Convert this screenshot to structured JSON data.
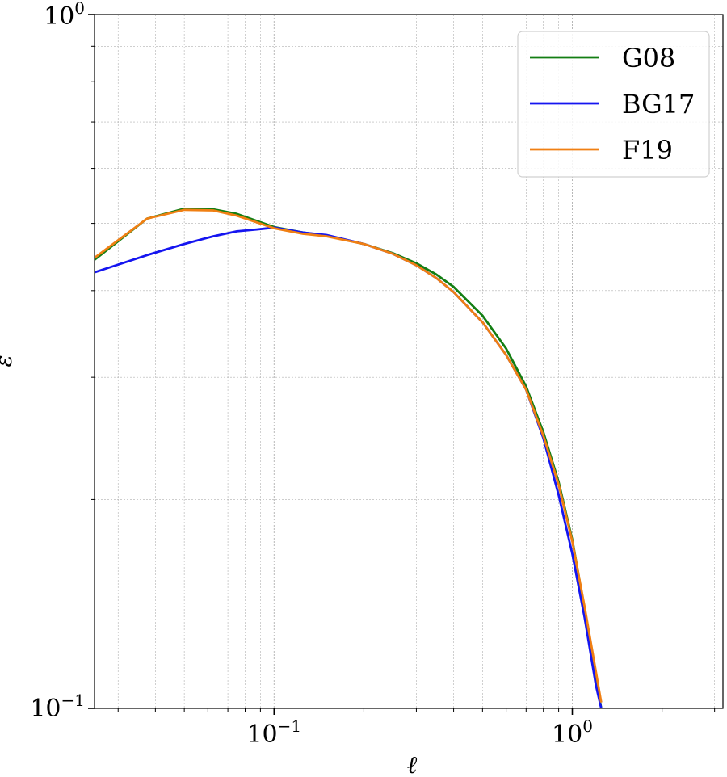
{
  "chart_data": {
    "type": "line",
    "xscale": "log",
    "yscale": "log",
    "xlabel": "ℓ",
    "ylabel": "ε",
    "xlim": [
      0.025,
      3.2
    ],
    "ylim": [
      0.1,
      1.0
    ],
    "grid": true,
    "legend_position": "top-right",
    "x_ticks": [
      {
        "value": 0.1,
        "base": "10",
        "exp": "−1"
      },
      {
        "value": 1.0,
        "base": "10",
        "exp": "0"
      }
    ],
    "y_ticks": [
      {
        "value": 0.1,
        "base": "10",
        "exp": "−1"
      },
      {
        "value": 1.0,
        "base": "10",
        "exp": "0"
      }
    ],
    "series": [
      {
        "name": "G08",
        "color": "#137e13",
        "x": [
          0.025,
          0.0375,
          0.05,
          0.0625,
          0.075,
          0.1,
          0.125,
          0.15,
          0.2,
          0.25,
          0.3,
          0.35,
          0.4,
          0.5,
          0.6,
          0.7,
          0.8,
          0.9,
          1.0,
          1.1,
          1.2,
          1.25
        ],
        "y": [
          0.443,
          0.508,
          0.525,
          0.524,
          0.516,
          0.494,
          0.485,
          0.48,
          0.467,
          0.453,
          0.438,
          0.422,
          0.405,
          0.368,
          0.33,
          0.291,
          0.25,
          0.212,
          0.175,
          0.139,
          0.111,
          0.1
        ]
      },
      {
        "name": "BG17",
        "color": "#1515f0",
        "x": [
          0.025,
          0.0375,
          0.05,
          0.0625,
          0.075,
          0.0875,
          0.1,
          0.125,
          0.15,
          0.2,
          0.25,
          0.3,
          0.35,
          0.4,
          0.5,
          0.6,
          0.7,
          0.8,
          0.9,
          1.0,
          1.1,
          1.2,
          1.25
        ],
        "y": [
          0.425,
          0.45,
          0.467,
          0.479,
          0.487,
          0.49,
          0.493,
          0.485,
          0.481,
          0.467,
          0.452,
          0.435,
          0.417,
          0.398,
          0.36,
          0.323,
          0.288,
          0.245,
          0.203,
          0.167,
          0.135,
          0.108,
          0.1
        ]
      },
      {
        "name": "F19",
        "color": "#f07f13",
        "x": [
          0.025,
          0.0375,
          0.05,
          0.0625,
          0.075,
          0.1,
          0.125,
          0.15,
          0.2,
          0.25,
          0.3,
          0.35,
          0.4,
          0.5,
          0.6,
          0.7,
          0.8,
          0.9,
          1.0,
          1.1,
          1.2,
          1.25
        ],
        "y": [
          0.446,
          0.508,
          0.523,
          0.522,
          0.513,
          0.492,
          0.483,
          0.479,
          0.467,
          0.452,
          0.435,
          0.417,
          0.398,
          0.36,
          0.323,
          0.288,
          0.247,
          0.21,
          0.174,
          0.14,
          0.113,
          0.102
        ]
      }
    ]
  }
}
